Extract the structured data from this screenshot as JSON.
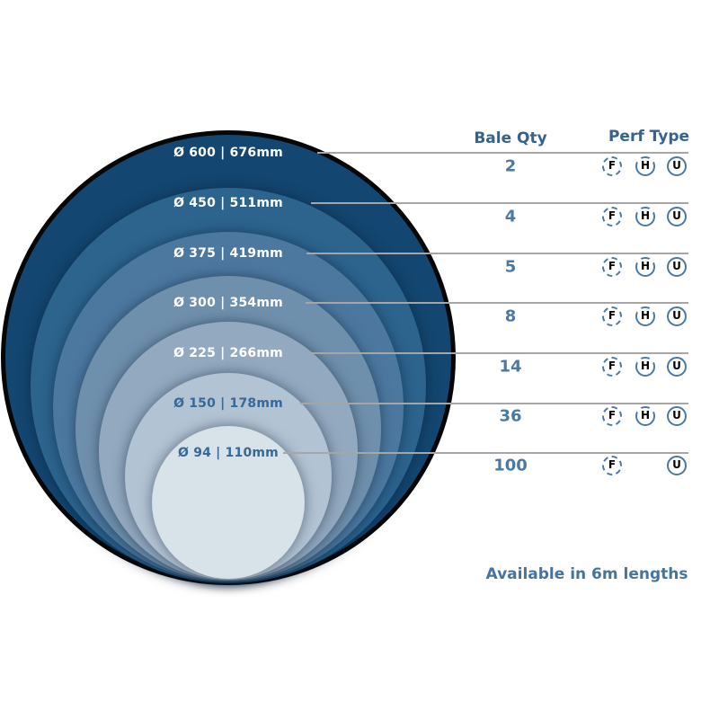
{
  "diagram": {
    "rings": [
      {
        "label": "Ø 600 | 676mm",
        "fill": "#134670",
        "label_color": "#ffffff"
      },
      {
        "label": "Ø 450 | 511mm",
        "fill": "#2c648e",
        "label_color": "#ffffff"
      },
      {
        "label": "Ø 375 | 419mm",
        "fill": "#4c78a0",
        "label_color": "#ffffff"
      },
      {
        "label": "Ø 300 | 354mm",
        "fill": "#6f90ad",
        "label_color": "#ffffff"
      },
      {
        "label": "Ø 225 | 266mm",
        "fill": "#93a9c0",
        "label_color": "#ffffff"
      },
      {
        "label": "Ø 150 | 178mm",
        "fill": "#b2c3d3",
        "label_color": "#35699a"
      },
      {
        "label": "Ø 94 | 110mm",
        "fill": "#d8e2e9",
        "label_color": "#35699a"
      }
    ],
    "outline_color": "#060606"
  },
  "table": {
    "headers": {
      "bale_qty": "Bale Qty",
      "perf_type": "Perf Type"
    },
    "rows": [
      {
        "bale_qty": "2",
        "perf_types": [
          "F",
          "H",
          "U"
        ]
      },
      {
        "bale_qty": "4",
        "perf_types": [
          "F",
          "H",
          "U"
        ]
      },
      {
        "bale_qty": "5",
        "perf_types": [
          "F",
          "H",
          "U"
        ]
      },
      {
        "bale_qty": "8",
        "perf_types": [
          "F",
          "H",
          "U"
        ]
      },
      {
        "bale_qty": "14",
        "perf_types": [
          "F",
          "H",
          "U"
        ]
      },
      {
        "bale_qty": "36",
        "perf_types": [
          "F",
          "H",
          "U"
        ]
      },
      {
        "bale_qty": "100",
        "perf_types": [
          "F",
          "U"
        ]
      }
    ]
  },
  "footer": {
    "availability_note": "Available in 6m lengths"
  },
  "colors": {
    "header_text": "#33638e",
    "qty_text": "#4a79a4",
    "icon_stroke": "#4a79a4",
    "icon_letter": "#000000",
    "leader_line": "#a6a6a6",
    "note_text": "#45749e"
  }
}
